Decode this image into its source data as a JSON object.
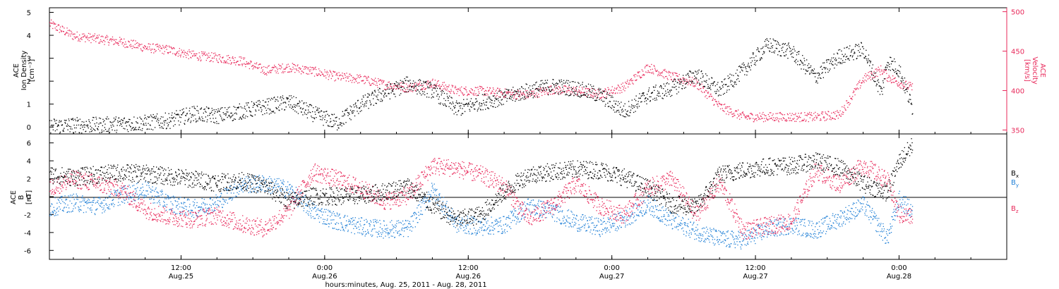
{
  "colors": {
    "black": "#000000",
    "pink": "#e8285a",
    "blue": "#1f7fd6"
  },
  "time_axis": {
    "label": "hours:minutes, Aug. 25, 2011 - Aug. 28, 2011",
    "ticks": [
      {
        "hour": 12,
        "time": "12:00",
        "date": "Aug.25"
      },
      {
        "hour": 24,
        "time": "0:00",
        "date": "Aug.26"
      },
      {
        "hour": 36,
        "time": "12:00",
        "date": "Aug.26"
      },
      {
        "hour": 48,
        "time": "0:00",
        "date": "Aug.27"
      },
      {
        "hour": 60,
        "time": "12:00",
        "date": "Aug.27"
      },
      {
        "hour": 72,
        "time": "0:00",
        "date": "Aug.28"
      }
    ]
  },
  "chart_data": [
    {
      "type": "scatter",
      "ylabel_left": [
        "ACE",
        "Ion Density",
        "[cm⁻³]"
      ],
      "ylabel_right": [
        "ACE",
        "Velocity",
        "[km/s]"
      ],
      "xlim_hours": [
        1.0,
        81.0
      ],
      "ylim_left": [
        -0.3,
        5.2
      ],
      "ylim_right": [
        345,
        505
      ],
      "yticks_left": [
        "0",
        "1",
        "2",
        "3",
        "4",
        "5"
      ],
      "yticks_right": [
        "350",
        "400",
        "450",
        "500"
      ],
      "series": [
        {
          "name": "Ion Density",
          "axis": "left",
          "color": "black",
          "x": [
            1,
            3,
            5,
            7,
            9,
            11,
            13,
            15,
            17,
            19,
            21,
            23,
            25,
            27,
            29,
            31,
            33,
            35,
            37,
            39,
            41,
            43,
            45,
            47,
            49,
            51,
            53,
            55,
            57,
            59,
            61,
            63,
            65,
            67,
            69,
            70.5,
            71,
            72,
            73.1
          ],
          "y": [
            0.05,
            0.1,
            0.1,
            0.15,
            0.2,
            0.3,
            0.6,
            0.5,
            0.7,
            0.9,
            1.1,
            0.6,
            0.2,
            1.0,
            1.5,
            1.9,
            1.6,
            0.8,
            1.1,
            1.3,
            1.6,
            1.8,
            1.7,
            1.4,
            0.7,
            1.4,
            1.7,
            2.3,
            1.6,
            2.5,
            3.6,
            3.3,
            2.2,
            3.1,
            3.4,
            1.5,
            2.9,
            2.5,
            0.8
          ]
        },
        {
          "name": "Velocity",
          "axis": "right",
          "color": "pink",
          "x": [
            1,
            3,
            5,
            7,
            9,
            11,
            13,
            15,
            17,
            19,
            21,
            23,
            25,
            27,
            29,
            31,
            33,
            35,
            37,
            39,
            41,
            43,
            45,
            47,
            49,
            51,
            53,
            55,
            57,
            59,
            61,
            63,
            65,
            67,
            69,
            70.5,
            71,
            72,
            73.1
          ],
          "y": [
            485,
            470,
            466,
            462,
            455,
            452,
            445,
            442,
            438,
            426,
            430,
            425,
            418,
            415,
            408,
            404,
            410,
            400,
            400,
            397,
            395,
            402,
            400,
            396,
            405,
            430,
            418,
            410,
            380,
            367,
            367,
            367,
            367,
            370,
            415,
            427,
            418,
            410,
            404
          ]
        }
      ]
    },
    {
      "type": "scatter",
      "ylabel": [
        "ACE",
        "B",
        "[nT]"
      ],
      "xlim_hours": [
        1.0,
        81.0
      ],
      "ylim": [
        -7,
        7
      ],
      "yticks": [
        "-6",
        "-4",
        "-2",
        "0",
        "2",
        "4",
        "6"
      ],
      "series": [
        {
          "name": "Bx",
          "color": "black",
          "x": [
            1,
            3,
            5,
            7,
            9,
            11,
            13,
            15,
            17,
            19,
            21,
            23,
            25,
            27,
            29,
            31,
            33,
            35,
            37,
            39,
            41,
            43,
            45,
            47,
            49,
            51,
            53,
            55,
            57,
            59,
            61,
            63,
            65,
            67,
            69,
            71,
            72,
            73.1
          ],
          "y": [
            2.5,
            2.2,
            2.5,
            2.7,
            2.6,
            2.3,
            2.0,
            1.6,
            1.8,
            1.2,
            -0.5,
            0.1,
            0.1,
            0.2,
            0.6,
            1.2,
            -1.0,
            -2.5,
            -2.0,
            0.6,
            2.5,
            2.8,
            3.1,
            3.0,
            2.2,
            1.0,
            -0.8,
            -1.2,
            2.5,
            3.0,
            3.4,
            3.5,
            4.0,
            3.3,
            1.5,
            0.5,
            4.0,
            5.8
          ]
        },
        {
          "name": "By",
          "color": "blue",
          "x": [
            1,
            3,
            5,
            7,
            9,
            11,
            13,
            15,
            17,
            19,
            21,
            23,
            25,
            27,
            29,
            31,
            33,
            35,
            37,
            39,
            41,
            43,
            45,
            47,
            49,
            51,
            53,
            55,
            57,
            59,
            61,
            63,
            65,
            67,
            69,
            71,
            72,
            73.1
          ],
          "y": [
            -1.2,
            -0.6,
            -1.0,
            0.2,
            0.8,
            -0.7,
            -1.3,
            -0.6,
            1.4,
            1.5,
            0.8,
            -1.6,
            -2.7,
            -3.3,
            -3.6,
            -3.5,
            0.8,
            -3.0,
            -3.3,
            -3.1,
            -1.0,
            -1.6,
            -2.8,
            -3.4,
            -2.5,
            -0.8,
            -2.7,
            -3.8,
            -4.7,
            -4.8,
            -3.6,
            -3.1,
            -3.7,
            -2.4,
            -0.9,
            -4.6,
            -0.3,
            -1.6
          ]
        },
        {
          "name": "Bz",
          "color": "pink",
          "x": [
            1,
            3,
            5,
            7,
            9,
            11,
            13,
            15,
            17,
            19,
            21,
            23,
            25,
            27,
            29,
            31,
            33,
            35,
            37,
            39,
            41,
            43,
            45,
            47,
            49,
            51,
            53,
            55,
            57,
            59,
            61,
            63,
            65,
            67,
            69,
            71,
            72,
            73.1
          ],
          "y": [
            1.0,
            2.0,
            1.5,
            0.8,
            -1.4,
            -2.2,
            -2.5,
            -2.0,
            -3.0,
            -3.5,
            -1.5,
            2.8,
            2.0,
            1.0,
            -0.5,
            0.2,
            3.5,
            3.2,
            2.5,
            1.2,
            -2.5,
            -1.0,
            1.5,
            -1.0,
            -2.0,
            1.0,
            2.0,
            -2.0,
            1.6,
            -3.8,
            -3.2,
            -2.7,
            3.0,
            1.4,
            3.6,
            1.8,
            -2.0,
            -2.2
          ]
        }
      ],
      "legend": [
        "B_x",
        "B_y",
        "B_z"
      ]
    }
  ]
}
